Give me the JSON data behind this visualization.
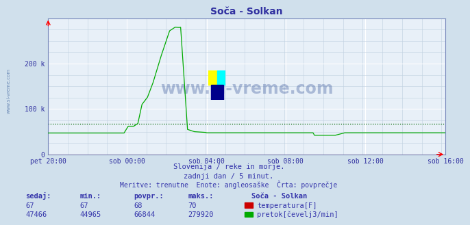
{
  "title": "Soča - Solkan",
  "bg_color": "#d0e0ec",
  "plot_bg_color": "#e8f0f8",
  "grid_color_major": "#ffffff",
  "grid_color_minor": "#c0d0e0",
  "text_color": "#3030a0",
  "x_labels": [
    "pet 20:00",
    "sob 00:00",
    "sob 04:00",
    "sob 08:00",
    "sob 12:00",
    "sob 16:00"
  ],
  "x_ticks_norm": [
    0.0,
    0.2,
    0.4,
    0.6,
    0.8,
    1.0
  ],
  "y_max": 300000,
  "y_ticks": [
    0,
    100000,
    200000
  ],
  "y_tick_labels": [
    "0",
    "100 k",
    "200 k"
  ],
  "avg_line_value": 66844,
  "temp_color": "#cc0000",
  "flow_color": "#00aa00",
  "avg_line_color": "#006600",
  "watermark": "www.si-vreme.com",
  "watermark_color": "#1a3a8a",
  "subtitle1": "Slovenija / reke in morje.",
  "subtitle2": "zadnji dan / 5 minut.",
  "subtitle3": "Meritve: trenutne  Enote: angleosaške  Črta: povprečje",
  "footer_color": "#3333aa",
  "table_header": [
    "sedaj:",
    "min.:",
    "povpr.:",
    "maks.:"
  ],
  "table_temp": [
    "67",
    "67",
    "68",
    "70"
  ],
  "table_flow": [
    "47466",
    "44965",
    "66844",
    "279920"
  ],
  "legend_label_temp": "temperatura[F]",
  "legend_label_flow": "pretok[čevelj3/min]",
  "spine_color": "#7788bb",
  "n_points": 289
}
